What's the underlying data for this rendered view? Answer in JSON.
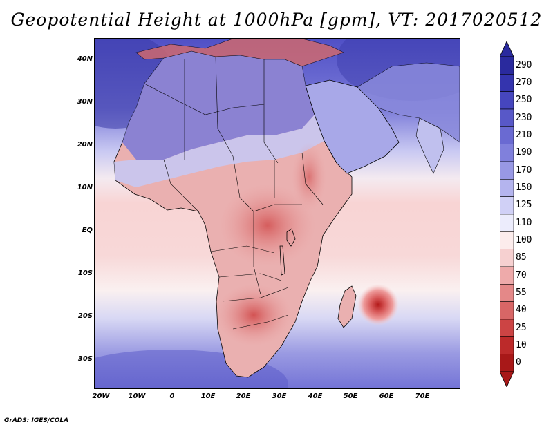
{
  "title": "Geopotential Height at 1000hPa [gpm], VT: 2017020512",
  "credit": "GrADS: IGES/COLA",
  "lat_labels": [
    "40N",
    "30N",
    "20N",
    "10N",
    "EQ",
    "10S",
    "20S",
    "30S"
  ],
  "lon_labels": [
    "20W",
    "10W",
    "0",
    "10E",
    "20E",
    "30E",
    "40E",
    "50E",
    "60E",
    "70E"
  ],
  "colorbar": {
    "levels": [
      "290",
      "270",
      "250",
      "230",
      "210",
      "190",
      "170",
      "150",
      "125",
      "110",
      "100",
      "85",
      "70",
      "55",
      "40",
      "25",
      "10",
      "0"
    ],
    "colors": [
      "#2a2a9e",
      "#3434ae",
      "#4646be",
      "#5858c8",
      "#6a6ad2",
      "#8080dc",
      "#9898e4",
      "#b4b4ee",
      "#d0d0f6",
      "#ececfc",
      "#fcecec",
      "#f6d0d0",
      "#eeaaaa",
      "#e48888",
      "#d86666",
      "#cc4444",
      "#bc2a2a",
      "#a81818"
    ]
  },
  "map": {
    "ocean_color": "#f7cfcf",
    "land_color": "#e89a9a",
    "high_color": "#7272d8",
    "coast_color": "#000000"
  }
}
